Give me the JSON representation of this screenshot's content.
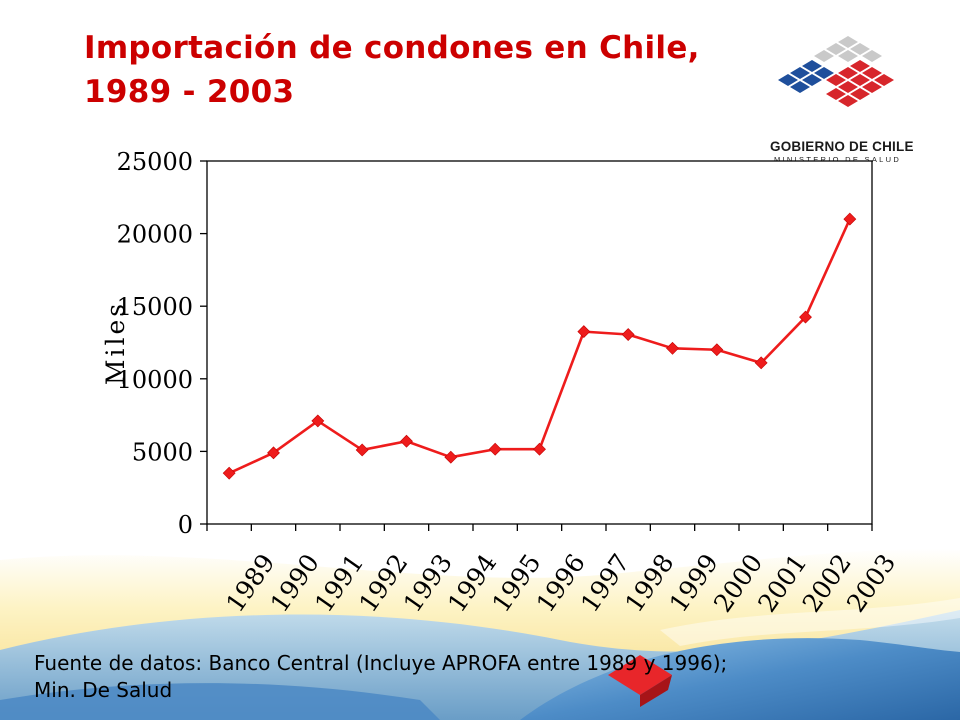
{
  "title": {
    "line1": "Importación de condones en Chile,",
    "line2": "1989 - 2003"
  },
  "logo": {
    "name": "GOBIERNO DE CHILE",
    "ministry": "MINISTERIO DE SALUD"
  },
  "source": {
    "line1": "Fuente de datos:  Banco Central (Incluye APROFA  entre 1989 y 1996);",
    "line2": "Min. De Salud"
  },
  "colors": {
    "series": "#ee1c1c",
    "title": "#cc0000",
    "wave_light": "#fde9a3",
    "wave_blue": "#2f6fae"
  },
  "chart_data": {
    "type": "line",
    "title": "Importación de condones en Chile, 1989 - 2003",
    "xlabel": "",
    "ylabel": "Miles",
    "categories": [
      "1989",
      "1990",
      "1991",
      "1992",
      "1993",
      "1994",
      "1995",
      "1996",
      "1997",
      "1998",
      "1999",
      "2000",
      "2001",
      "2002",
      "2003"
    ],
    "series": [
      {
        "values": [
          3500,
          4900,
          7100,
          5100,
          5700,
          4600,
          5150,
          5150,
          13250,
          13050,
          12100,
          12000,
          11100,
          14250,
          21000
        ]
      }
    ],
    "ylim": [
      0,
      25000
    ],
    "yticks": [
      0,
      5000,
      10000,
      15000,
      20000,
      25000
    ],
    "grid": false,
    "legend": "none",
    "marker": "diamond"
  }
}
